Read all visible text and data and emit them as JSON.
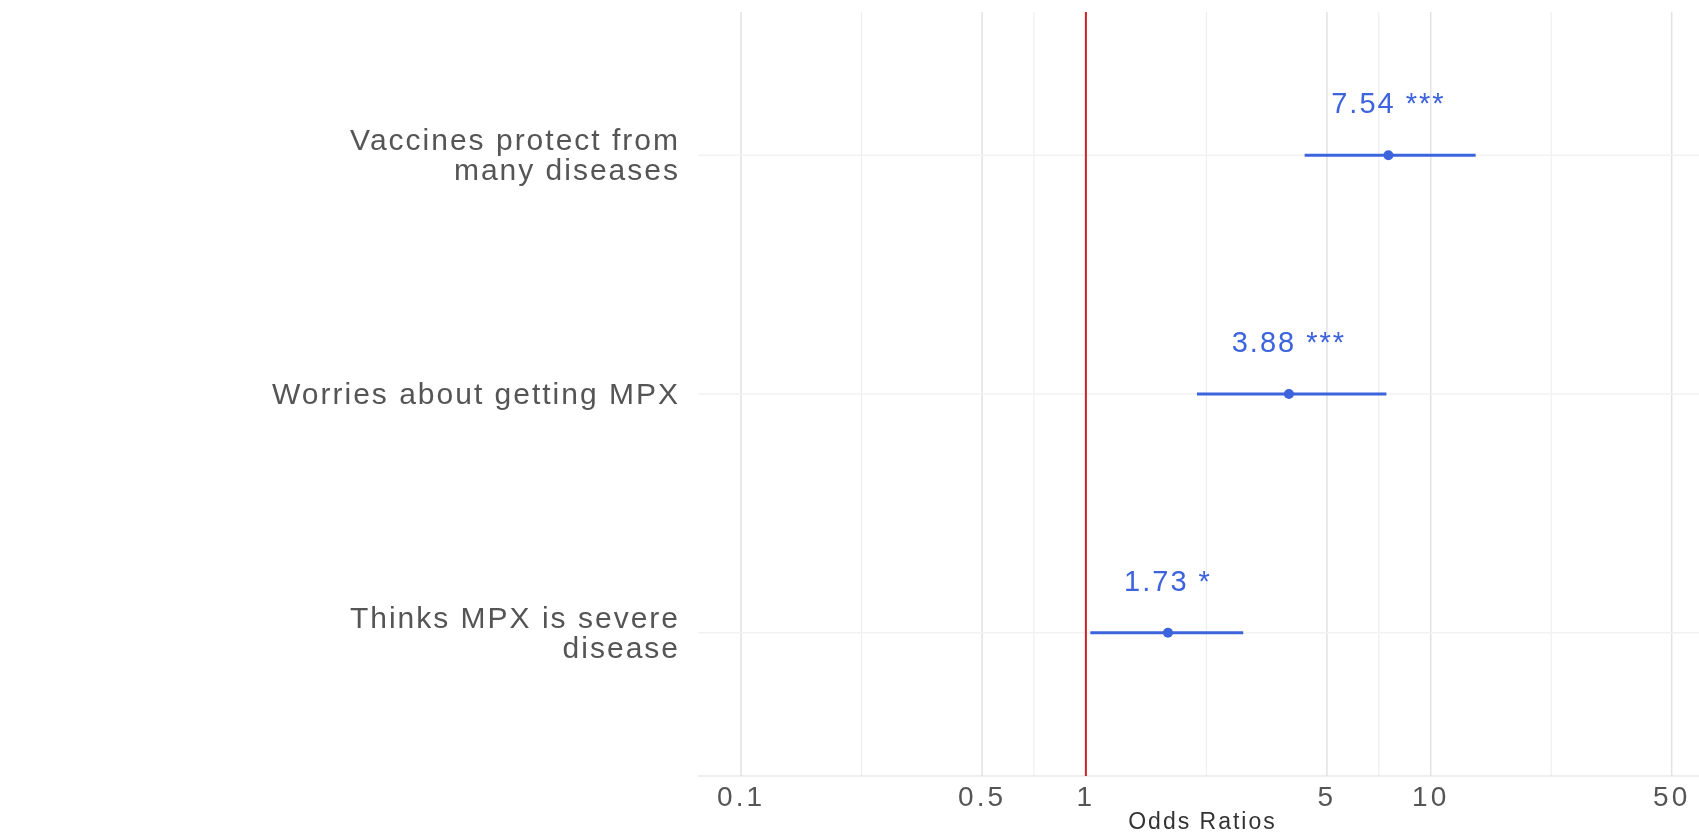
{
  "chart_data": {
    "type": "scatter",
    "orientation": "horizontal",
    "xlabel": "Odds Ratios",
    "categories": [
      "Vaccines protect from\nmany diseases",
      "Worries about getting MPX",
      "Thinks MPX is severe\ndisease"
    ],
    "values": [
      7.54,
      3.88,
      1.73
    ],
    "errors": [
      [
        4.31,
        13.5
      ],
      [
        2.1,
        7.44
      ],
      [
        1.03,
        2.86
      ]
    ],
    "value_labels": [
      "7.54 ***",
      "3.88 ***",
      "1.73 *"
    ],
    "color": "#3d63dd",
    "marker": "circle",
    "log": "x",
    "grid": true,
    "xlim": [
      0.075,
      60
    ],
    "xticks": [
      0.1,
      0.5,
      1,
      5,
      10,
      50
    ],
    "ref_lines": [
      {
        "axis": "x",
        "value": 1,
        "color": "#cc2222"
      }
    ]
  }
}
